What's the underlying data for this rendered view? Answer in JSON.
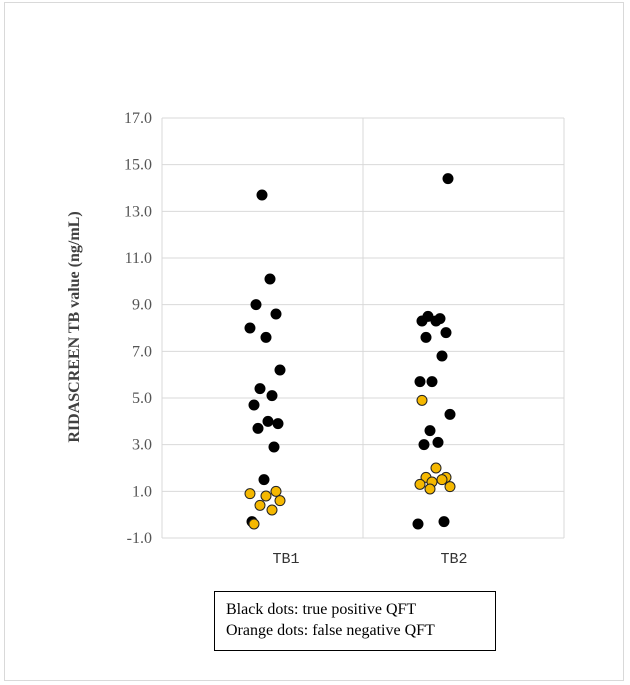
{
  "chart_data": {
    "type": "scatter",
    "ylabel": "RIDASCREEN TB value (ng/mL)",
    "ylim": [
      -1.0,
      17.0
    ],
    "yticks": [
      "-1.0",
      "1.0",
      "3.0",
      "5.0",
      "7.0",
      "9.0",
      "11.0",
      "13.0",
      "15.0",
      "17.0"
    ],
    "categories": [
      "TB1",
      "TB2"
    ],
    "grid": true,
    "legend_lines": [
      "Black dots: true positive QFT",
      "Orange dots: false negative QFT"
    ],
    "colors": {
      "true_positive": "#000000",
      "false_negative": "#f5b800",
      "grid": "#d9d9d9"
    },
    "series": [
      {
        "category": "TB1",
        "group": "true_positive",
        "values": [
          13.7,
          10.1,
          9.0,
          8.6,
          8.0,
          7.6,
          6.2,
          5.4,
          5.1,
          4.7,
          4.0,
          3.9,
          3.7,
          2.9,
          1.5,
          -0.3
        ]
      },
      {
        "category": "TB1",
        "group": "false_negative",
        "values": [
          1.0,
          0.9,
          0.8,
          0.6,
          0.4,
          0.2,
          -0.4
        ]
      },
      {
        "category": "TB2",
        "group": "true_positive",
        "values": [
          14.4,
          8.5,
          8.4,
          8.3,
          8.3,
          7.8,
          7.6,
          6.8,
          5.7,
          5.7,
          4.3,
          3.6,
          3.1,
          3.0,
          -0.3,
          -0.4
        ]
      },
      {
        "category": "TB2",
        "group": "false_negative",
        "values": [
          4.9,
          2.0,
          1.6,
          1.6,
          1.5,
          1.4,
          1.3,
          1.2,
          1.1
        ]
      }
    ]
  }
}
